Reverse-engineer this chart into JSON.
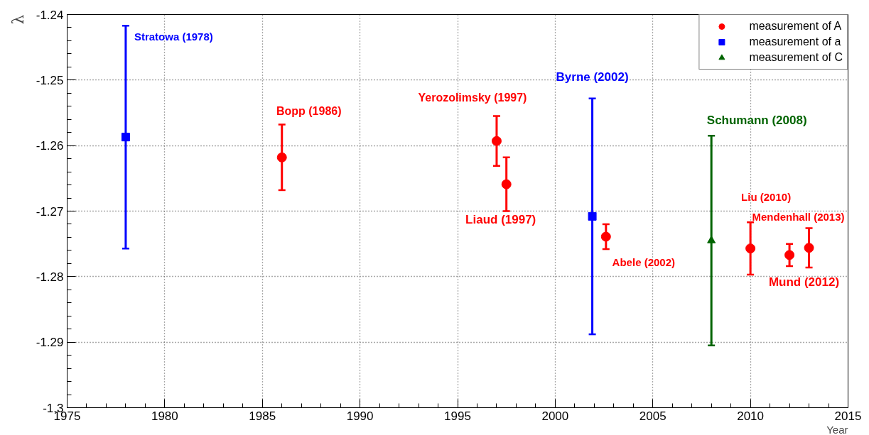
{
  "chart_data": {
    "type": "scatter",
    "xlabel": "Year",
    "ylabel": "λ",
    "xlim": [
      1975,
      2015
    ],
    "xticks": [
      1975,
      1980,
      1985,
      1990,
      1995,
      2000,
      2005,
      2010,
      2015
    ],
    "ylim": [
      -1.3,
      -1.24
    ],
    "yticks": [
      -1.3,
      -1.29,
      -1.28,
      -1.27,
      -1.26,
      -1.25,
      -1.24
    ],
    "grid": true,
    "legend": "top right",
    "series": [
      {
        "name": "measurement of A",
        "color": "#ff0000",
        "marker": "circle",
        "x": [
          1986,
          1997,
          1997.5,
          2002.6,
          2010,
          2012,
          2013
        ],
        "values": [
          -1.2618,
          -1.2593,
          -1.2659,
          -1.2739,
          -1.2757,
          -1.2767,
          -1.2756
        ],
        "errors": [
          0.005,
          0.0038,
          0.0041,
          0.0019,
          0.004,
          0.0017,
          0.003
        ]
      },
      {
        "name": "measurement of a",
        "color": "#0000ff",
        "marker": "square",
        "x": [
          1978,
          2001.9
        ],
        "values": [
          -1.2587,
          -1.2708
        ],
        "errors": [
          0.017,
          0.018
        ]
      },
      {
        "name": "measurement of C",
        "color": "#006400",
        "marker": "triangle",
        "x": [
          2008
        ],
        "values": [
          -1.2745
        ],
        "errors": [
          0.016
        ]
      }
    ],
    "annotations": [
      {
        "text": "Stratowa (1978)",
        "x": 1978,
        "y": -1.2417
      },
      {
        "text": "Bopp (1986)",
        "x": 1986,
        "y": -1.2568
      },
      {
        "text": "Yerozolimsky (1997)",
        "x": 1997,
        "y": -1.2555
      },
      {
        "text": "Liaud (1997)",
        "x": 1997.5,
        "y": -1.2659
      },
      {
        "text": "Byrne (2002)",
        "x": 2001.9,
        "y": -1.2528
      },
      {
        "text": "Abele (2002)",
        "x": 2002.6,
        "y": -1.2739
      },
      {
        "text": "Schumann (2008)",
        "x": 2008,
        "y": -1.2585
      },
      {
        "text": "Liu (2010)",
        "x": 2010,
        "y": -1.2717
      },
      {
        "text": "Mund (2012)",
        "x": 2012,
        "y": -1.2767
      },
      {
        "text": "Mendenhall (2013)",
        "x": 2013,
        "y": -1.2756
      }
    ]
  }
}
